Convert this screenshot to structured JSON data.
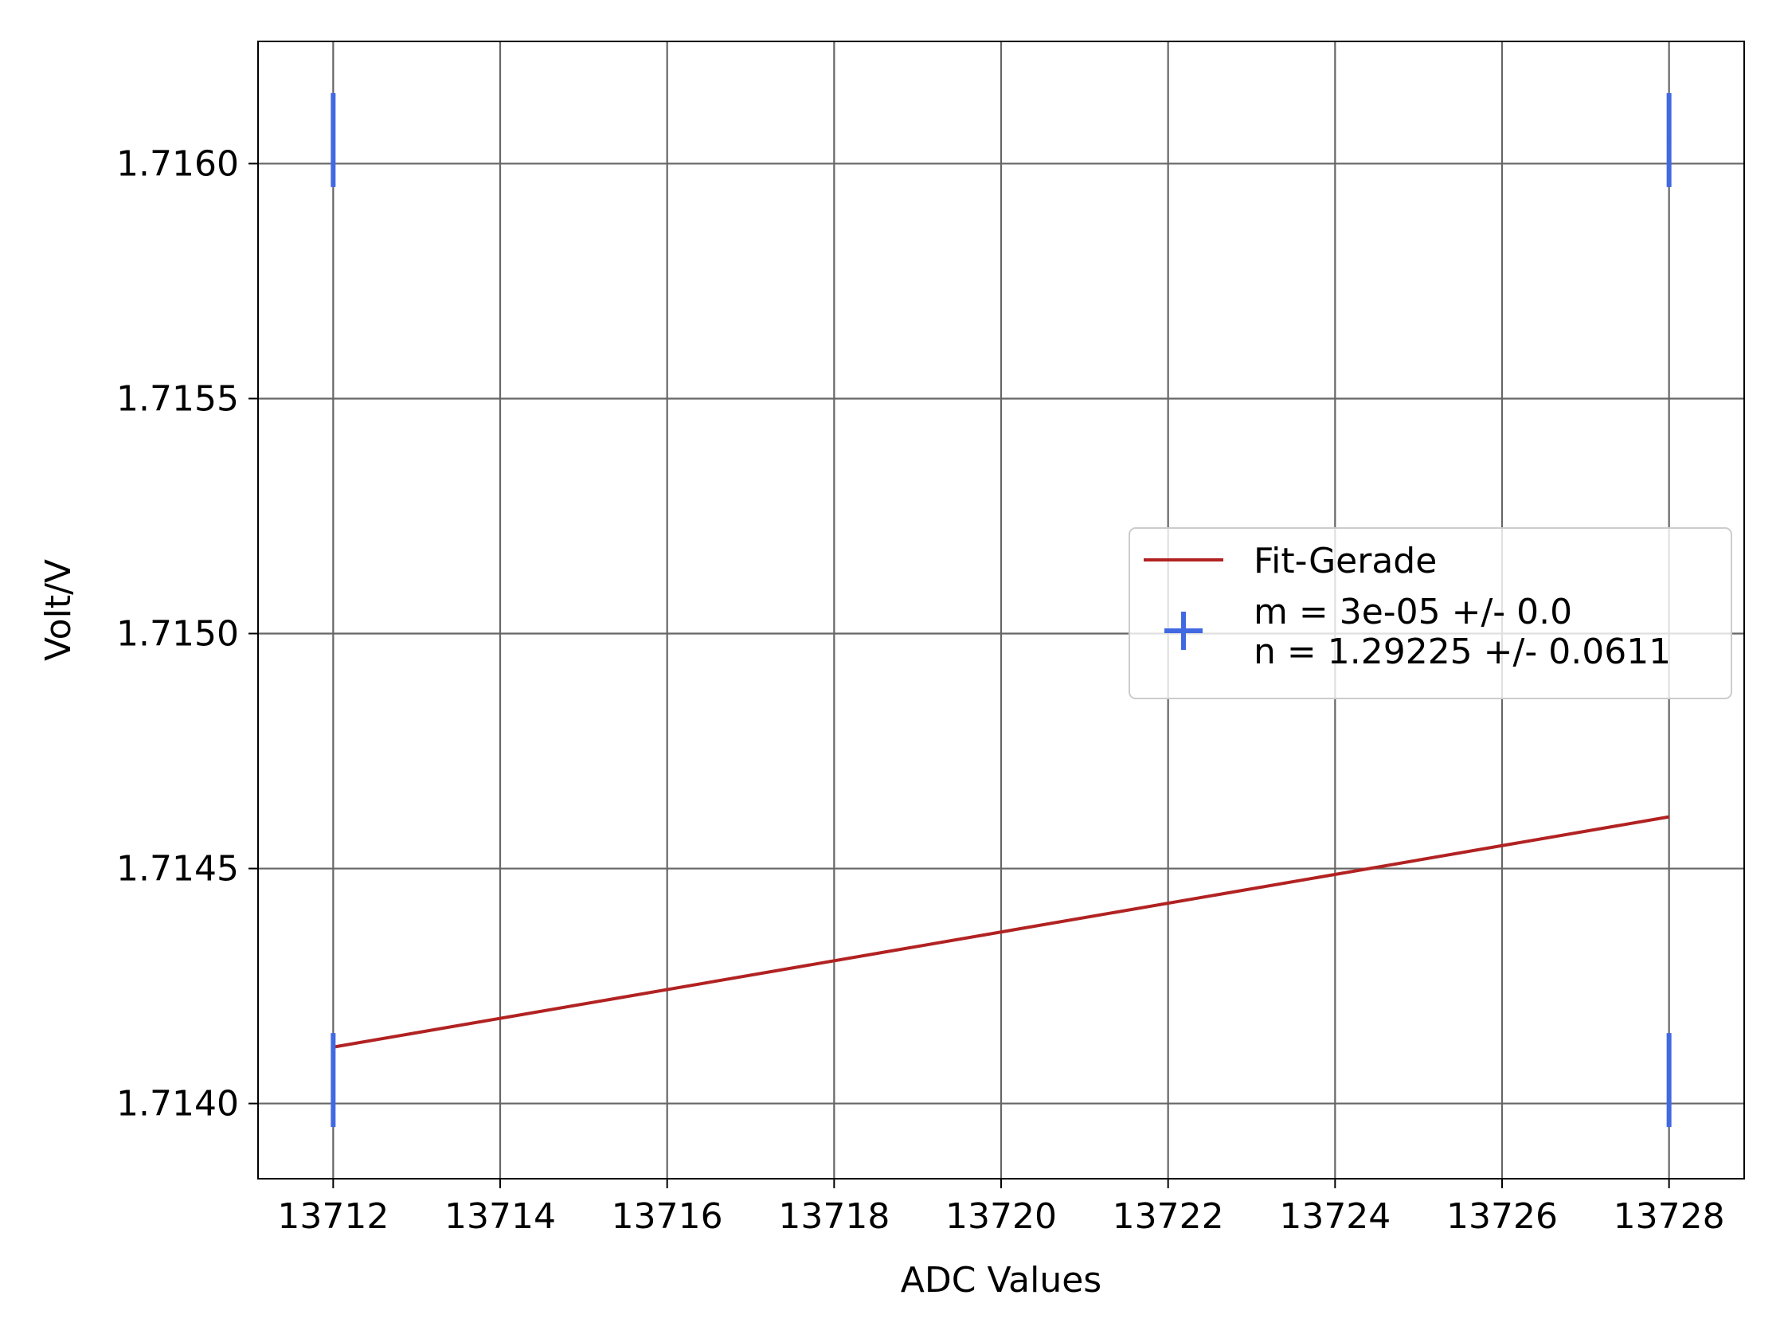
{
  "chart_data": {
    "type": "scatter",
    "xlabel": "ADC Values",
    "ylabel": "Volt/V",
    "xlim": [
      13711.1,
      13728.9
    ],
    "ylim": [
      1.71384,
      1.71626
    ],
    "xticks": [
      13712,
      13714,
      13716,
      13718,
      13720,
      13722,
      13724,
      13726,
      13728
    ],
    "yticks": [
      1.714,
      1.7145,
      1.715,
      1.7155,
      1.716
    ],
    "xtick_labels": [
      "13712",
      "13714",
      "13716",
      "13718",
      "13720",
      "13722",
      "13724",
      "13726",
      "13728"
    ],
    "ytick_labels": [
      "1.7140",
      "1.7145",
      "1.7150",
      "1.7155",
      "1.7160"
    ],
    "grid": true,
    "legend_position": "center-right",
    "series": [
      {
        "name": "Fit-Gerade",
        "kind": "line",
        "color": "#b22222",
        "x": [
          13712,
          13728
        ],
        "y": [
          1.71412,
          1.71461
        ]
      },
      {
        "name": "m = 3e-05 +/- 0.0\nn = 1.29225 +/- 0.0611",
        "kind": "errorbar",
        "color": "#4169e1",
        "points": [
          {
            "x": 13712,
            "y": 1.71605,
            "xerr": 0.01,
            "yerr": 0.0001
          },
          {
            "x": 13712,
            "y": 1.71405,
            "xerr": 0.01,
            "yerr": 0.0001
          },
          {
            "x": 13728,
            "y": 1.71605,
            "xerr": 0.01,
            "yerr": 0.0001
          },
          {
            "x": 13728,
            "y": 1.71405,
            "xerr": 0.01,
            "yerr": 0.0001
          }
        ]
      }
    ],
    "legend": {
      "entries": [
        {
          "label_lines": [
            "Fit-Gerade"
          ],
          "color": "#b22222",
          "marker": "line"
        },
        {
          "label_lines": [
            "m = 3e-05 +/- 0.0",
            "n = 1.29225 +/- 0.0611"
          ],
          "color": "#4169e1",
          "marker": "errorbar"
        }
      ]
    }
  }
}
